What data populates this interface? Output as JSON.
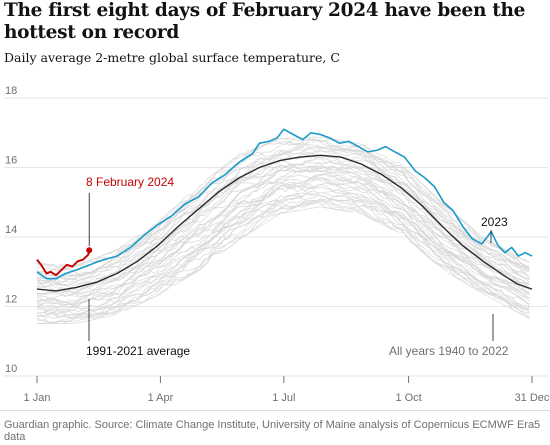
{
  "title": "The first eight days of February 2024 have been the hottest on record",
  "subtitle": "Daily average 2-metre global surface temperature, C",
  "footer": "Guardian graphic. Source: Climate Change Institute, University of Maine analysis of Copernicus ECMWF Era5 data",
  "colors": {
    "background_years": "#d6d6d6",
    "average": "#2a2a2a",
    "year_2023": "#1a9ac9",
    "year_2024": "#c70000",
    "grid": "#e6e6e6",
    "axis_text": "#707070",
    "text": "#121212"
  },
  "chart_data": {
    "type": "line",
    "x_unit": "day of year",
    "xlim": [
      1,
      366
    ],
    "ylim": [
      10,
      18
    ],
    "y_ticks": [
      10,
      12,
      14,
      16,
      18
    ],
    "y_tick_labels": [
      "10",
      "12",
      "14",
      "16",
      "18"
    ],
    "x_ticks": [
      1,
      92,
      183,
      275,
      366
    ],
    "x_tick_labels": [
      "1 Jan",
      "1 Apr",
      "1 Jul",
      "1 Oct",
      "31 Dec"
    ],
    "grid": true,
    "series": [
      {
        "name": "1991-2021 average",
        "label_position": "bottom-left",
        "points": [
          [
            1,
            12.5
          ],
          [
            15,
            12.45
          ],
          [
            30,
            12.55
          ],
          [
            45,
            12.7
          ],
          [
            60,
            12.95
          ],
          [
            75,
            13.3
          ],
          [
            90,
            13.75
          ],
          [
            105,
            14.3
          ],
          [
            120,
            14.8
          ],
          [
            135,
            15.3
          ],
          [
            150,
            15.7
          ],
          [
            165,
            16.0
          ],
          [
            180,
            16.2
          ],
          [
            195,
            16.3
          ],
          [
            210,
            16.35
          ],
          [
            225,
            16.3
          ],
          [
            240,
            16.1
          ],
          [
            255,
            15.8
          ],
          [
            270,
            15.4
          ],
          [
            285,
            14.9
          ],
          [
            300,
            14.3
          ],
          [
            315,
            13.75
          ],
          [
            330,
            13.3
          ],
          [
            345,
            12.9
          ],
          [
            355,
            12.65
          ],
          [
            366,
            12.5
          ]
        ]
      },
      {
        "name": "2023",
        "label_position": "right",
        "points": [
          [
            1,
            13.0
          ],
          [
            8,
            12.8
          ],
          [
            15,
            12.8
          ],
          [
            22,
            12.95
          ],
          [
            30,
            13.05
          ],
          [
            40,
            13.2
          ],
          [
            50,
            13.35
          ],
          [
            60,
            13.45
          ],
          [
            70,
            13.7
          ],
          [
            80,
            14.05
          ],
          [
            90,
            14.35
          ],
          [
            100,
            14.6
          ],
          [
            110,
            14.95
          ],
          [
            120,
            15.15
          ],
          [
            130,
            15.55
          ],
          [
            140,
            15.8
          ],
          [
            150,
            16.15
          ],
          [
            160,
            16.4
          ],
          [
            165,
            16.7
          ],
          [
            172,
            16.75
          ],
          [
            178,
            16.85
          ],
          [
            183,
            17.1
          ],
          [
            190,
            16.95
          ],
          [
            197,
            16.8
          ],
          [
            203,
            17.0
          ],
          [
            210,
            16.95
          ],
          [
            217,
            16.85
          ],
          [
            224,
            16.7
          ],
          [
            231,
            16.75
          ],
          [
            238,
            16.6
          ],
          [
            245,
            16.45
          ],
          [
            252,
            16.5
          ],
          [
            258,
            16.6
          ],
          [
            265,
            16.45
          ],
          [
            272,
            16.3
          ],
          [
            280,
            15.9
          ],
          [
            287,
            15.7
          ],
          [
            294,
            15.45
          ],
          [
            301,
            15.0
          ],
          [
            308,
            14.75
          ],
          [
            315,
            14.3
          ],
          [
            322,
            13.95
          ],
          [
            329,
            13.8
          ],
          [
            336,
            14.15
          ],
          [
            341,
            13.75
          ],
          [
            346,
            13.55
          ],
          [
            351,
            13.7
          ],
          [
            356,
            13.45
          ],
          [
            361,
            13.55
          ],
          [
            366,
            13.45
          ]
        ]
      },
      {
        "name": "8 February 2024",
        "label_position": "above",
        "points": [
          [
            1,
            13.35
          ],
          [
            4,
            13.2
          ],
          [
            8,
            12.95
          ],
          [
            11,
            13.0
          ],
          [
            15,
            12.9
          ],
          [
            19,
            13.05
          ],
          [
            23,
            13.2
          ],
          [
            27,
            13.15
          ],
          [
            31,
            13.3
          ],
          [
            35,
            13.35
          ],
          [
            39,
            13.5
          ],
          [
            39.5,
            13.62
          ]
        ]
      }
    ],
    "background_band": {
      "name": "All years 1940 to 2022",
      "label_position": "bottom-right",
      "upper": [
        [
          1,
          13.25
        ],
        [
          30,
          13.2
        ],
        [
          60,
          13.65
        ],
        [
          90,
          14.45
        ],
        [
          120,
          15.5
        ],
        [
          150,
          16.4
        ],
        [
          180,
          16.85
        ],
        [
          210,
          16.9
        ],
        [
          240,
          16.7
        ],
        [
          270,
          16.1
        ],
        [
          300,
          15.0
        ],
        [
          330,
          14.0
        ],
        [
          366,
          13.25
        ]
      ],
      "lower": [
        [
          1,
          11.5
        ],
        [
          30,
          11.5
        ],
        [
          60,
          11.75
        ],
        [
          90,
          12.3
        ],
        [
          120,
          13.0
        ],
        [
          150,
          13.9
        ],
        [
          180,
          14.65
        ],
        [
          210,
          14.85
        ],
        [
          240,
          14.65
        ],
        [
          270,
          14.05
        ],
        [
          300,
          13.05
        ],
        [
          330,
          12.35
        ],
        [
          366,
          11.6
        ]
      ]
    }
  }
}
